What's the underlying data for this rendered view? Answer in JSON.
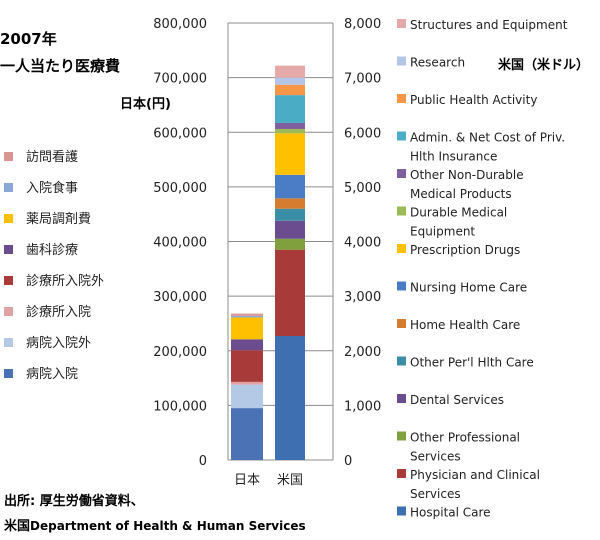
{
  "title": "2007年",
  "subtitle": "一人当たり医療費",
  "left_axis_label": "日本(円)",
  "right_axis_label": "米国（米ドル）",
  "source_line1": "出所: 厚生労働省資料、",
  "source_line2_prefix": "米国",
  "source_line2_rest": "Department of Health & Human Services",
  "chart_data": {
    "type": "bar",
    "stacked": true,
    "categories": [
      "日本",
      "米国"
    ],
    "left_axis": {
      "label": "日本(円)",
      "ylim": [
        0,
        800000
      ],
      "ticks": [
        "0",
        "100,000",
        "200,000",
        "300,000",
        "400,000",
        "500,000",
        "600,000",
        "700,000",
        "800,000"
      ]
    },
    "right_axis": {
      "label": "米国（米ドル）",
      "ylim": [
        0,
        8000
      ],
      "ticks": [
        "0",
        "1,000",
        "2,000",
        "3,000",
        "4,000",
        "5,000",
        "6,000",
        "7,000",
        "8,000"
      ]
    },
    "grid": true,
    "japan_series": [
      {
        "name": "病院入院",
        "color": "#4a72b5",
        "value": 95000
      },
      {
        "name": "病院入院外",
        "color": "#b4c9e6",
        "value": 43000
      },
      {
        "name": "診療所入院",
        "color": "#e2a2a4",
        "value": 5000
      },
      {
        "name": "診療所入院外",
        "color": "#a83b3a",
        "value": 58000
      },
      {
        "name": "歯科診療",
        "color": "#6b4c8f",
        "value": 20000
      },
      {
        "name": "薬局調剤費",
        "color": "#ffc000",
        "value": 40000
      },
      {
        "name": "入院食事",
        "color": "#8aa7d6",
        "value": 3000
      },
      {
        "name": "訪問看護",
        "color": "#d99694",
        "value": 4000
      }
    ],
    "us_series": [
      {
        "name": "Hospital Care",
        "color": "#3e6fb0",
        "value": 2270
      },
      {
        "name": "Physician and Clinical Services",
        "color": "#a83b3a",
        "value": 1580
      },
      {
        "name": "Other Professional Services",
        "color": "#7fa03c",
        "value": 200
      },
      {
        "name": "Dental Services",
        "color": "#6b4c8f",
        "value": 330
      },
      {
        "name": "Other Per'l Hlth Care",
        "color": "#3b8ea5",
        "value": 220
      },
      {
        "name": "Home Health Care",
        "color": "#d67c2e",
        "value": 190
      },
      {
        "name": "Nursing Home Care",
        "color": "#4b7cc6",
        "value": 430
      },
      {
        "name": "Prescription Drugs",
        "color": "#ffc000",
        "value": 760
      },
      {
        "name": "Durable Medical Equipment",
        "color": "#9bbb59",
        "value": 80
      },
      {
        "name": "Other Non-Durable Medical Products",
        "color": "#7f5f9e",
        "value": 110
      },
      {
        "name": "Admin. & Net Cost of Priv. Hlth Insurance",
        "color": "#4bacc6",
        "value": 510
      },
      {
        "name": "Public Health Activity",
        "color": "#f79646",
        "value": 190
      },
      {
        "name": "Research",
        "color": "#b4c6e7",
        "value": 130
      },
      {
        "name": "Structures and Equipment",
        "color": "#e6a9a9",
        "value": 220
      }
    ],
    "japan_legend": [
      "訪問看護",
      "入院食事",
      "薬局調剤費",
      "歯科診療",
      "診療所入院外",
      "診療所入院",
      "病院入院外",
      "病院入院"
    ],
    "us_legend": [
      {
        "lines": [
          "Structures and Equipment"
        ],
        "color": "#e6a9a9"
      },
      {
        "lines": [
          "Research"
        ],
        "color": "#b4c6e7"
      },
      {
        "lines": [
          "Public Health Activity"
        ],
        "color": "#f79646"
      },
      {
        "lines": [
          "Admin. & Net Cost of Priv.",
          "Hlth Insurance"
        ],
        "color": "#4bacc6"
      },
      {
        "lines": [
          "Other Non-Durable",
          "Medical Products"
        ],
        "color": "#7f5f9e"
      },
      {
        "lines": [
          "Durable Medical",
          "Equipment"
        ],
        "color": "#9bbb59"
      },
      {
        "lines": [
          "Prescription Drugs"
        ],
        "color": "#ffc000"
      },
      {
        "lines": [
          "Nursing Home Care"
        ],
        "color": "#4b7cc6"
      },
      {
        "lines": [
          "Home Health Care"
        ],
        "color": "#d67c2e"
      },
      {
        "lines": [
          "Other Per'l Hlth Care"
        ],
        "color": "#3b8ea5"
      },
      {
        "lines": [
          "Dental Services"
        ],
        "color": "#6b4c8f"
      },
      {
        "lines": [
          "Other Professional",
          "Services"
        ],
        "color": "#7fa03c"
      },
      {
        "lines": [
          "Physician and Clinical",
          "Services"
        ],
        "color": "#a83b3a"
      },
      {
        "lines": [
          "Hospital Care"
        ],
        "color": "#3e6fb0"
      }
    ]
  }
}
